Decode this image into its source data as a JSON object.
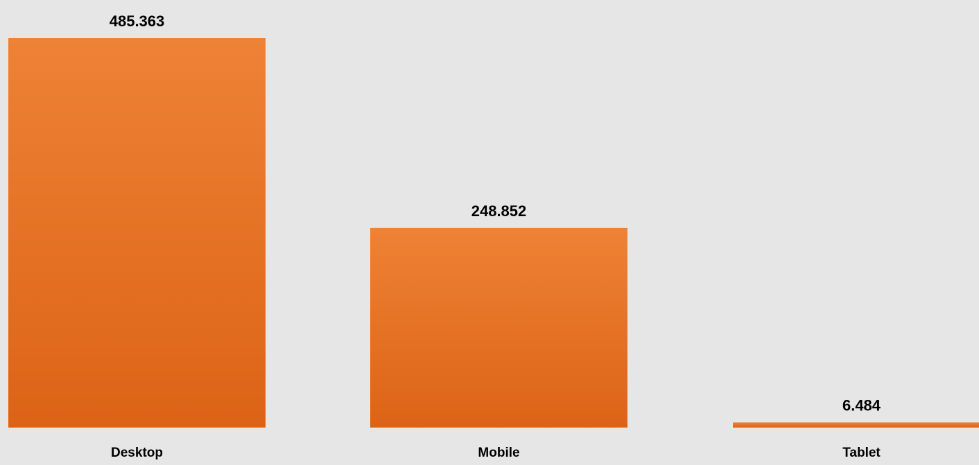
{
  "chart_data": {
    "type": "bar",
    "categories": [
      "Desktop",
      "Mobile",
      "Tablet"
    ],
    "values": [
      485.363,
      248.852,
      6.484
    ],
    "value_labels": [
      "485.363",
      "248.852",
      "6.484"
    ],
    "ylim": [
      0,
      485.363
    ],
    "grid": false,
    "legend": "none",
    "colors": {
      "bar_top": "#ee8236",
      "bar_bottom": "#dc6316",
      "background": "#e7e6e6",
      "text": "#000000"
    }
  }
}
